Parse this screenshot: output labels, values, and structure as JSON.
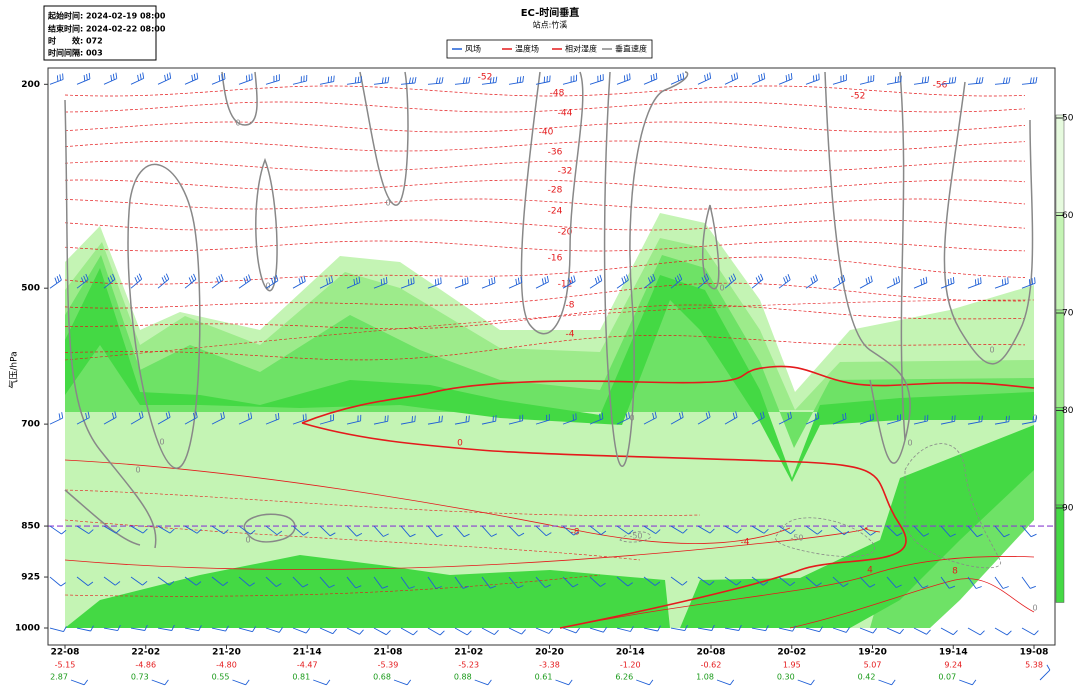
{
  "info": {
    "lines": [
      "起始时间: 2024-02-19 08:00",
      "结束时间: 2024-02-22 08:00",
      "时　　效: 072",
      "时间间隔: 003"
    ]
  },
  "chart_data": {
    "type": "contour",
    "title": "EC-时间垂直",
    "subtitle": "站点:竹溪",
    "series": [
      {
        "name": "风场",
        "color": "#1f5fd6"
      },
      {
        "name": "温度场",
        "color": "#e41a1c"
      },
      {
        "name": "相对湿度",
        "color": "#e41a1c"
      },
      {
        "name": "垂直速度",
        "color": "#888888"
      }
    ],
    "categories": [
      "22-08",
      "22-02",
      "21-20",
      "21-14",
      "21-08",
      "21-02",
      "20-20",
      "20-14",
      "20-08",
      "20-02",
      "19-20",
      "19-14",
      "19-08"
    ],
    "ylabel": "气压/hPa",
    "ylim": [
      1025,
      176
    ],
    "yticks": [
      200,
      500,
      700,
      850,
      925,
      1000
    ],
    "surface_temperature": [
      -5.15,
      -4.86,
      -4.8,
      -4.47,
      -5.39,
      -5.23,
      -3.38,
      -1.2,
      -0.62,
      1.95,
      5.07,
      9.24,
      5.38
    ],
    "surface_temperature_labels": [
      "-5.15",
      "-4.86",
      "-4.80",
      "-4.47",
      "-5.39",
      "-5.23",
      "-3.38",
      "-1.20",
      "-0.62",
      "1.95",
      "5.07",
      "9.24",
      "5.38"
    ],
    "surface_second": [
      2.87,
      0.73,
      0.55,
      0.81,
      0.68,
      0.88,
      0.61,
      6.26,
      1.08,
      0.3,
      0.42,
      0.07,
      null
    ],
    "surface_second_labels": [
      "2.87",
      "0.73",
      "0.55",
      "0.81",
      "0.68",
      "0.88",
      "0.61",
      "6.26",
      "1.08",
      "0.30",
      "0.42",
      "0.07",
      null
    ],
    "isotherm_labels": [
      -52,
      -48,
      -44,
      -40,
      -36,
      -32,
      -28,
      -24,
      -20,
      -16,
      -12,
      -8,
      -4,
      0,
      -8,
      -4,
      4,
      8,
      -56,
      -52
    ],
    "velocity_labels": [
      0,
      0,
      0,
      0,
      0,
      0,
      -50,
      -50,
      0,
      0,
      0,
      0,
      0,
      0
    ],
    "reference_level": 850,
    "colorbar": {
      "ticks": [
        50,
        60,
        70,
        80,
        90
      ],
      "colors": [
        "#e6fade",
        "#c4f4b4",
        "#9deb8b",
        "#6ee266",
        "#44d944"
      ]
    }
  }
}
